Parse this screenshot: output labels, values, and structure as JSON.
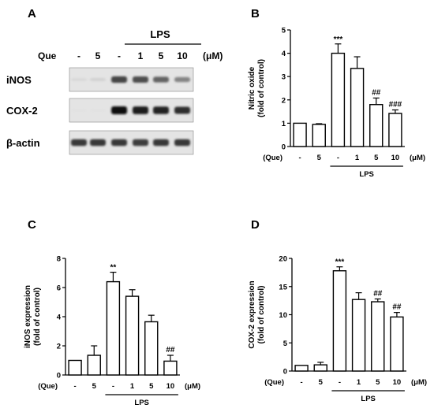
{
  "panel_a": {
    "letter": "A",
    "lps_label": "LPS",
    "que_label": "Que",
    "unit": "(μM)",
    "lanes": [
      "-",
      "5",
      "-",
      "1",
      "5",
      "10"
    ],
    "blots": [
      {
        "name": "iNOS",
        "intensities": [
          0.05,
          0.08,
          0.75,
          0.7,
          0.6,
          0.45
        ]
      },
      {
        "name": "COX-2",
        "intensities": [
          0.0,
          0.0,
          1.0,
          0.95,
          0.92,
          0.85
        ]
      },
      {
        "name": "β-actin",
        "intensities": [
          0.8,
          0.8,
          0.8,
          0.78,
          0.8,
          0.8
        ]
      }
    ]
  },
  "chart_data": [
    {
      "type": "bar",
      "panel": "B",
      "ylabel_line1": "Nitric oxide",
      "ylabel_line2": "(fold of control)",
      "ylim": [
        0,
        5
      ],
      "yticks": [
        0,
        1,
        2,
        3,
        4,
        5
      ],
      "categories": [
        "-",
        "5",
        "-",
        "1",
        "5",
        "10"
      ],
      "values": [
        1.0,
        0.95,
        4.0,
        3.35,
        1.8,
        1.42
      ],
      "errors": [
        0.0,
        0.03,
        0.4,
        0.5,
        0.28,
        0.15
      ],
      "annotations": [
        "",
        "",
        "***",
        "",
        "##",
        "###"
      ],
      "row_label": "(Que)",
      "unit_label": "(μM)",
      "group_label": "LPS"
    },
    {
      "type": "bar",
      "panel": "C",
      "ylabel_line1": "iNOS expression",
      "ylabel_line2": "(fold of control)",
      "ylim": [
        0,
        8
      ],
      "yticks": [
        0,
        2,
        4,
        6,
        8
      ],
      "categories": [
        "-",
        "5",
        "-",
        "1",
        "5",
        "10"
      ],
      "values": [
        1.0,
        1.35,
        6.4,
        5.4,
        3.65,
        0.95
      ],
      "errors": [
        0.0,
        0.65,
        0.65,
        0.45,
        0.45,
        0.4
      ],
      "annotations": [
        "",
        "",
        "**",
        "",
        "",
        "##"
      ],
      "row_label": "(Que)",
      "unit_label": "(μM)",
      "group_label": "LPS"
    },
    {
      "type": "bar",
      "panel": "D",
      "ylabel_line1": "COX-2 expression",
      "ylabel_line2": "(fold of control)",
      "ylim": [
        0,
        20
      ],
      "yticks": [
        0,
        5,
        10,
        15,
        20
      ],
      "categories": [
        "-",
        "5",
        "-",
        "1",
        "5",
        "10"
      ],
      "values": [
        1.0,
        1.1,
        17.8,
        12.7,
        12.3,
        9.6
      ],
      "errors": [
        0.0,
        0.45,
        0.7,
        1.2,
        0.5,
        0.8
      ],
      "annotations": [
        "",
        "",
        "***",
        "",
        "##",
        "##"
      ],
      "row_label": "(Que)",
      "unit_label": "(μM)",
      "group_label": "LPS"
    }
  ]
}
